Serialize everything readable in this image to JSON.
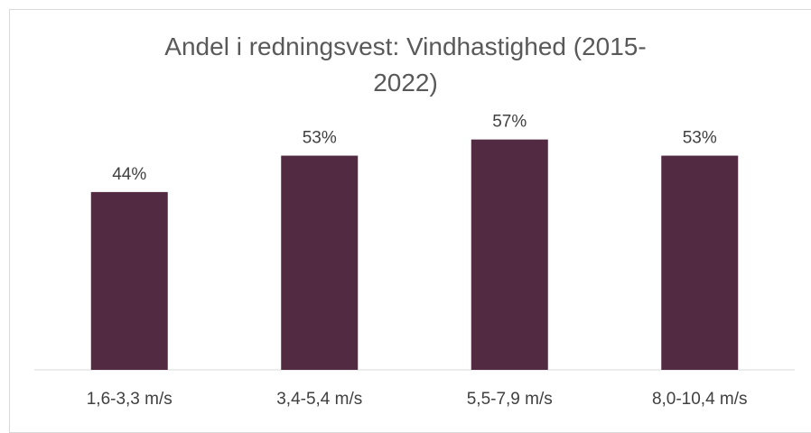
{
  "chart_data": {
    "type": "bar",
    "title": "Andel i redningsvest: Vindhastighed (2015-2022)",
    "categories": [
      "1,6-3,3 m/s",
      "3,4-5,4 m/s",
      "5,5-7,9 m/s",
      "8,0-10,4 m/s"
    ],
    "values": [
      44,
      53,
      57,
      53
    ],
    "value_labels": [
      "44%",
      "53%",
      "57%",
      "53%"
    ],
    "color": "#522a42"
  }
}
